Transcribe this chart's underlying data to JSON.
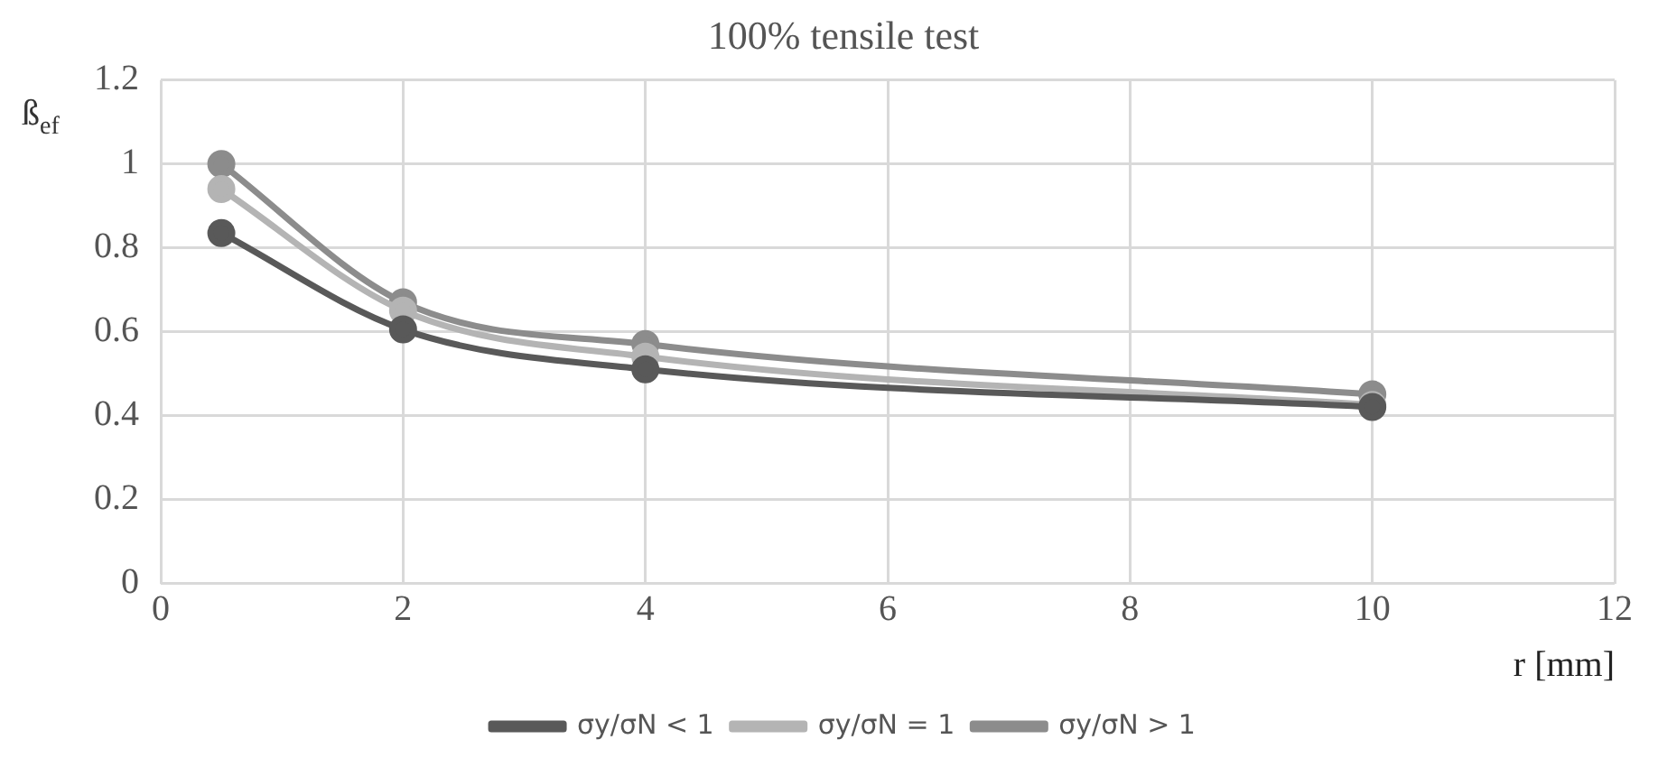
{
  "chart_data": {
    "type": "line",
    "title": "100% tensile test",
    "xlabel": "r [mm]",
    "ylabel": "ß$_{ef}$",
    "x": [
      0.5,
      2,
      4,
      10
    ],
    "series": [
      {
        "name": "σy/σN < 1",
        "color": "#595959",
        "values": [
          0.835,
          0.605,
          0.51,
          0.42
        ]
      },
      {
        "name": "σy/σN = 1",
        "color": "#b4b4b4",
        "values": [
          0.94,
          0.65,
          0.54,
          0.425
        ]
      },
      {
        "name": "σy/σN > 1",
        "color": "#8c8c8c",
        "values": [
          1.0,
          0.67,
          0.57,
          0.45
        ]
      }
    ],
    "xlim": [
      0,
      12
    ],
    "xticks": [
      0,
      2,
      4,
      6,
      8,
      10,
      12
    ],
    "ylim": [
      0,
      1.2
    ],
    "yticks": [
      0,
      0.2,
      0.4,
      0.6,
      0.8,
      1,
      1.2
    ],
    "grid": true,
    "legend": "bottom",
    "marker": "circle",
    "line_style": "solid"
  }
}
